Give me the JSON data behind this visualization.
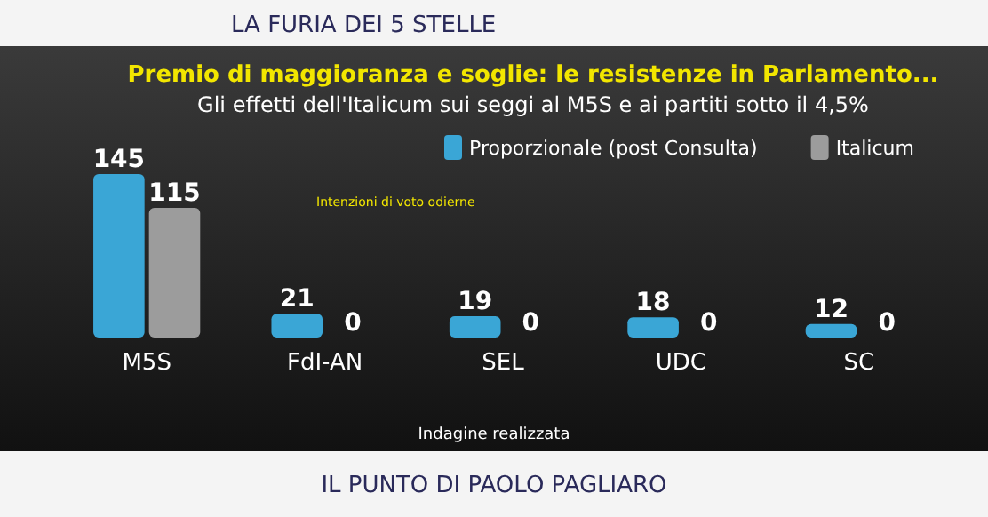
{
  "chart_data": {
    "type": "bar",
    "title": "Premio di maggioranza e soglie: le resistenze in Parlamento...",
    "subtitle": "Gli effetti dell'Italicum sui seggi al M5S e ai partiti sotto il 4,5%",
    "categories": [
      "M5S",
      "FdI-AN",
      "SEL",
      "UDC",
      "SC"
    ],
    "series": [
      {
        "name": "Proporzionale (post Consulta)",
        "color": "#3aa6d6",
        "values": [
          145,
          21,
          19,
          18,
          12
        ]
      },
      {
        "name": "Italicum",
        "color": "#9c9c9c",
        "values": [
          115,
          0,
          0,
          0,
          0
        ]
      }
    ],
    "data_labels": true,
    "legend": "top right",
    "annotations": [
      "LA FURIA DEI 5 STELLE",
      "Intenzioni di voto odierne",
      "Indagine realizzata",
      "IL PUNTO DI PAOLO PAGLIARO"
    ]
  }
}
